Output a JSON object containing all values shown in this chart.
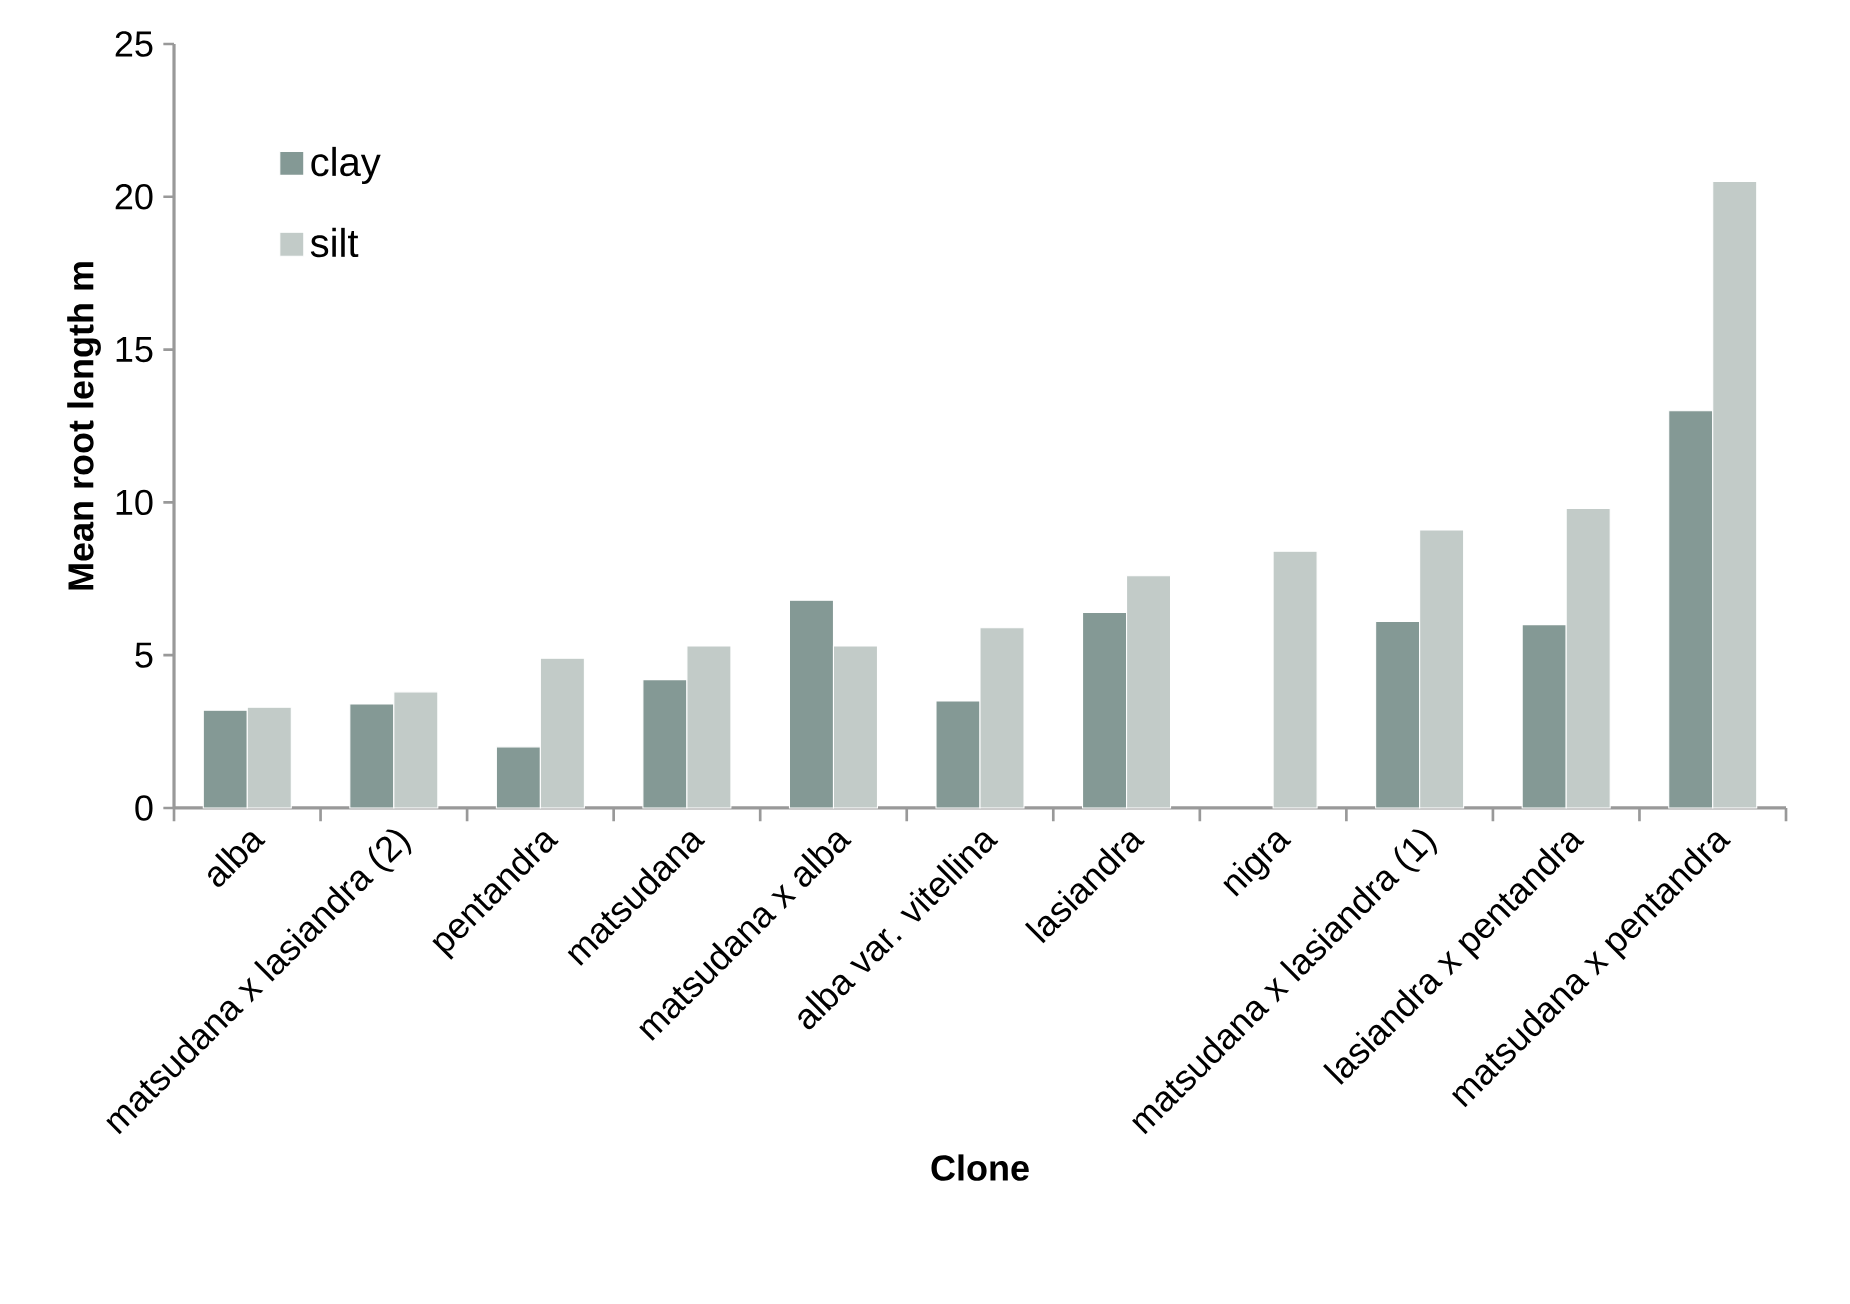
{
  "chart_data": {
    "type": "bar",
    "xlabel": "Clone",
    "ylabel": "Mean root length m",
    "categories": [
      "alba",
      "matsudana x lasiandra (2)",
      "pentandra",
      "matsudana",
      "matsudana x alba",
      "alba var. vitellina",
      "lasiandra",
      "nigra",
      "matsudana x lasiandra (1)",
      "lasiandra x pentandra",
      "matsudana x pentandra"
    ],
    "series": [
      {
        "name": "clay",
        "color": "#849995",
        "values": [
          3.2,
          3.4,
          2.0,
          4.2,
          6.8,
          3.5,
          6.4,
          null,
          6.1,
          6.0,
          13.0
        ]
      },
      {
        "name": "silt",
        "color": "#c2cbc8",
        "values": [
          3.3,
          3.8,
          4.9,
          5.3,
          5.3,
          5.9,
          7.6,
          8.4,
          9.1,
          9.8,
          20.5
        ]
      }
    ],
    "ylim": [
      0,
      25
    ],
    "yticks": [
      0,
      5,
      10,
      15,
      20,
      25
    ],
    "grid": false,
    "legend": "top left"
  }
}
